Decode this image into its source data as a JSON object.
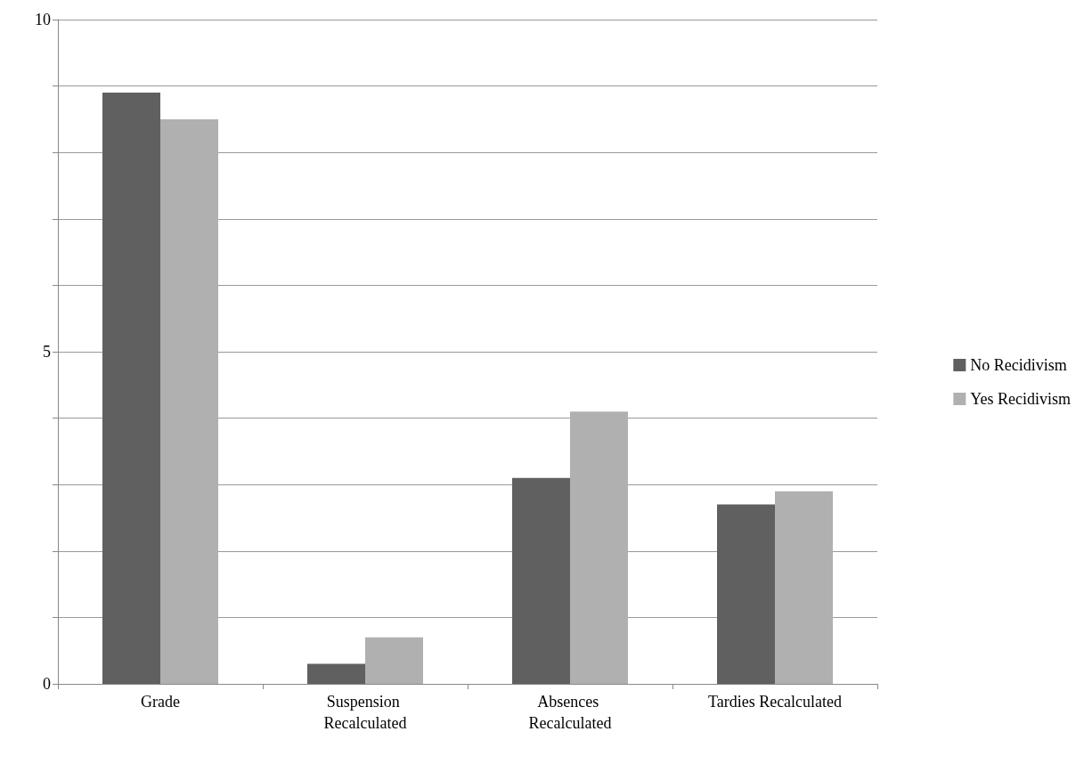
{
  "chart_data": {
    "type": "bar",
    "categories": [
      "Grade",
      "Suspension Recalculated",
      "Absences Recalculated",
      "Tardies Recalculated"
    ],
    "series": [
      {
        "name": "No Recidivism",
        "color": "#606060",
        "values": [
          8.9,
          0.3,
          3.1,
          2.7
        ]
      },
      {
        "name": "Yes Recidivism",
        "color": "#b0b0b0",
        "values": [
          8.5,
          0.7,
          4.1,
          2.9
        ]
      }
    ],
    "ylim": [
      0,
      10
    ],
    "yticks": [
      0,
      {
        "value": 1,
        "label": null
      },
      {
        "value": 2,
        "label": null
      },
      {
        "value": 3,
        "label": null
      },
      {
        "value": 4,
        "label": null
      },
      5,
      {
        "value": 6,
        "label": null
      },
      {
        "value": 7,
        "label": null
      },
      {
        "value": 8,
        "label": null
      },
      {
        "value": 9,
        "label": null
      },
      10
    ],
    "grid": "y",
    "legend": "right"
  }
}
